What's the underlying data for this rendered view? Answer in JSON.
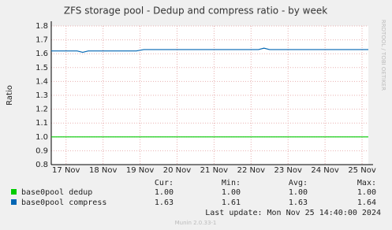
{
  "chart_data": {
    "type": "line",
    "title": "ZFS storage pool - Dedup and compress ratio - by week",
    "y_label": "Ratio",
    "side_label": "RRDTOOL / TOBI OETIKER",
    "xlim": [
      16.6,
      25.17
    ],
    "xticks": [
      {
        "value": 17,
        "label": "17 Nov"
      },
      {
        "value": 18,
        "label": "18 Nov"
      },
      {
        "value": 19,
        "label": "19 Nov"
      },
      {
        "value": 20,
        "label": "20 Nov"
      },
      {
        "value": 21,
        "label": "21 Nov"
      },
      {
        "value": 22,
        "label": "22 Nov"
      },
      {
        "value": 23,
        "label": "23 Nov"
      },
      {
        "value": 24,
        "label": "24 Nov"
      },
      {
        "value": 25,
        "label": "25 Nov"
      }
    ],
    "ylim": [
      0.8,
      1.8
    ],
    "yticks": [
      0.8,
      0.9,
      {
        "value": 1,
        "label": "1.0"
      },
      1.1,
      1.2,
      1.3,
      1.4,
      1.5,
      1.6,
      1.7,
      1.8
    ],
    "grid": true,
    "x": [
      16.6,
      17.1,
      17.3,
      17.45,
      17.6,
      18.9,
      19.1,
      22.2,
      22.35,
      22.5,
      22.6,
      25.17
    ],
    "series": [
      {
        "name": "base0pool dedup",
        "color": "#00cc00",
        "values": [
          1.0,
          1.0,
          1.0,
          1.0,
          1.0,
          1.0,
          1.0,
          1.0,
          1.0,
          1.0,
          1.0,
          1.0
        ]
      },
      {
        "name": "base0pool compress",
        "color": "#0066b3",
        "values": [
          1.62,
          1.62,
          1.62,
          1.61,
          1.62,
          1.62,
          1.63,
          1.63,
          1.64,
          1.63,
          1.63,
          1.63
        ]
      }
    ],
    "stats": {
      "columns": [
        "Cur:",
        "Min:",
        "Avg:",
        "Max:"
      ],
      "rows": [
        [
          "1.00",
          "1.00",
          "1.00",
          "1.00"
        ],
        [
          "1.63",
          "1.61",
          "1.63",
          "1.64"
        ]
      ]
    },
    "last_update": "Last update:  Mon Nov 25 14:40:00 2024",
    "version": "Munin 2.0.33-1"
  }
}
